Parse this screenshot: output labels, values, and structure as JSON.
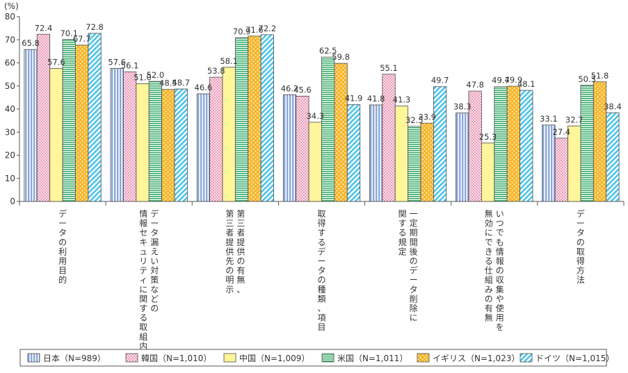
{
  "chart_data": {
    "type": "bar",
    "unit_label": "(%)",
    "ylim": [
      0,
      80
    ],
    "yticks": [
      0,
      10,
      20,
      30,
      40,
      50,
      60,
      70,
      80
    ],
    "grid": false,
    "legend_position": "bottom",
    "categories": [
      "データの利用目的",
      "データ漏えい対策などの情報セキュリティに関する取組内容",
      "第三者提供の有無、第三者提供先の明示",
      "取得するデータの種類、項目",
      "一定期間後のデータ削除に関する規定",
      "いつでも情報の収集や使用を無効にできる仕組みの有無",
      "データの取得方法"
    ],
    "category_lines": [
      [
        "データの利用目的"
      ],
      [
        "データ漏えい対策などの",
        "情報セキュリティに関する取組内容"
      ],
      [
        "第三者提供の有無、",
        "第三者提供先の明示"
      ],
      [
        "取得するデータの種類、項目"
      ],
      [
        "一定期間後のデータ削除に",
        "関する規定"
      ],
      [
        "いつでも情報の収集や使用を",
        "無効にできる仕組みの有無"
      ],
      [
        "データの取得方法"
      ]
    ],
    "series": [
      {
        "name": "日本（N=989）",
        "color": "#a8bfe3",
        "pattern": "vstripe",
        "values": [
          65.8,
          57.6,
          46.6,
          46.2,
          41.8,
          38.3,
          33.1
        ]
      },
      {
        "name": "韓国（N=1,010）",
        "color": "#f2a9c4",
        "pattern": "dots-pink",
        "values": [
          72.4,
          56.1,
          53.8,
          45.6,
          55.1,
          47.8,
          27.4
        ]
      },
      {
        "name": "中国（N=1,009）",
        "color": "#fff59a",
        "pattern": "solid",
        "values": [
          57.6,
          51.0,
          58.1,
          34.3,
          41.3,
          25.3,
          32.7
        ]
      },
      {
        "name": "米国（N=1,011）",
        "color": "#7ccba0",
        "pattern": "hstripe",
        "values": [
          70.1,
          52.0,
          70.9,
          62.5,
          32.5,
          49.7,
          50.3
        ]
      },
      {
        "name": "イギリス（N=1,023）",
        "color": "#f8c34a",
        "pattern": "dots-orange",
        "values": [
          67.7,
          48.5,
          71.6,
          59.8,
          33.9,
          49.9,
          51.8
        ]
      },
      {
        "name": "ドイツ（N=1,015）",
        "color": "#7dd3ee",
        "pattern": "diag",
        "values": [
          72.8,
          48.7,
          72.2,
          41.9,
          49.7,
          48.1,
          38.4
        ]
      }
    ]
  }
}
